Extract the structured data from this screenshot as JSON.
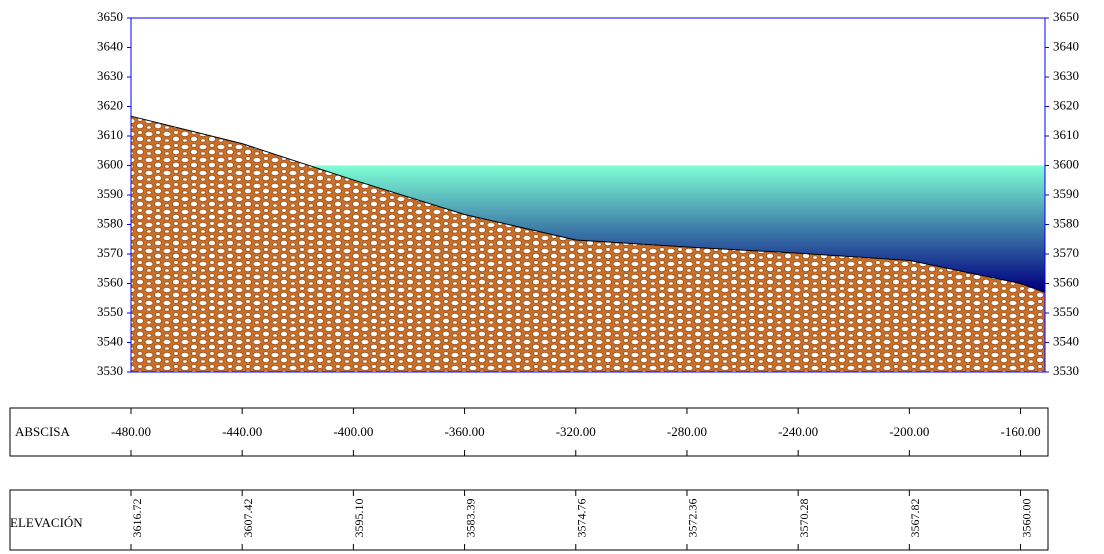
{
  "chart_data": {
    "type": "area",
    "x": [
      -480,
      -440,
      -400,
      -360,
      -320,
      -280,
      -240,
      -200,
      -160,
      -151.2
    ],
    "series": [
      {
        "color": "#c0661f",
        "values": [
          3616.72,
          3607.42,
          3595.1,
          3583.39,
          3574.76,
          3572.36,
          3570.28,
          3567.82,
          3560.0,
          3557
        ],
        "value_labels": [
          "3616.72",
          "3607.42",
          "3595.10",
          "3583.39",
          "3574.76",
          "3572.36",
          "3570.28",
          "3567.82",
          "3560.00",
          null
        ]
      }
    ],
    "water_level": 3600,
    "water_colors": [
      "#7fffd4",
      "#000080"
    ],
    "xlim": [
      -480,
      -151.2
    ],
    "ylim": [
      3530,
      3650
    ],
    "yticks": [
      3530,
      3540,
      3550,
      3560,
      3570,
      3580,
      3590,
      3600,
      3610,
      3620,
      3630,
      3640,
      3650
    ],
    "xticks": [
      {
        "value": -480,
        "label": "-480.00"
      },
      {
        "value": -440,
        "label": "-440.00"
      },
      {
        "value": -400,
        "label": "-400.00"
      },
      {
        "value": -360,
        "label": "-360.00"
      },
      {
        "value": -320,
        "label": "-320.00"
      },
      {
        "value": -280,
        "label": "-280.00"
      },
      {
        "value": -240,
        "label": "-240.00"
      },
      {
        "value": -200,
        "label": "-200.00"
      },
      {
        "value": -160,
        "label": "-160.00"
      }
    ],
    "row_labels": [
      "ABSCISA",
      "ELEVACIÓN"
    ],
    "axis_color": "#0000ff"
  }
}
